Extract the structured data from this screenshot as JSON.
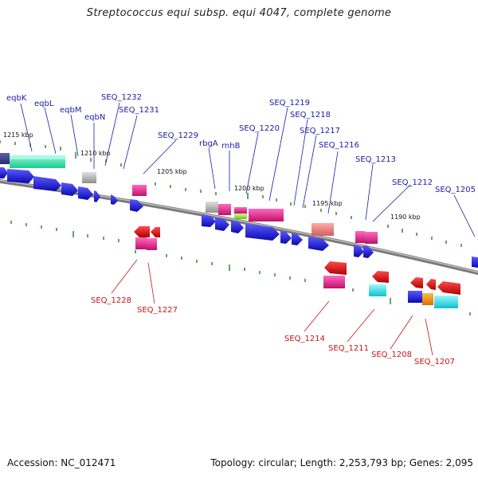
{
  "title": "Streptococcus equi subsp. equi 4047, complete genome",
  "footer": {
    "accession": "Accession: NC_012471",
    "summary": "Topology: circular; Length: 2,253,793 bp; Genes: 2,095"
  },
  "kbp_labels": [
    "1215 kbp",
    "1210 kbp",
    "1205 kbp",
    "1200 kbp",
    "1195 kbp",
    "1190 kbp"
  ],
  "top_labels": [
    "eqbK",
    "eqbL",
    "eqbM",
    "eqbN",
    "SEQ_1232",
    "SEQ_1231",
    "SEQ_1229",
    "rbgA",
    "rnhB",
    "SEQ_1220",
    "SEQ_1219",
    "SEQ_1218",
    "SEQ_1217",
    "SEQ_1216",
    "SEQ_1213",
    "SEQ_1212",
    "SEQ_1205"
  ],
  "bottom_labels": [
    "SEQ_1228",
    "SEQ_1227",
    "SEQ_1214",
    "SEQ_1211",
    "SEQ_1208",
    "SEQ_1207"
  ],
  "colors": {
    "forward_gene": "#1a1ad6",
    "reverse_gene": "#e01010",
    "magenta": "#e0208a",
    "teal": "#30e0b0",
    "cyan": "#20d8e0",
    "orange": "#f08a10",
    "salmon": "#e87878",
    "gray": "#b0b0b0",
    "lime": "#a0e040",
    "tick": "#2a8a2a",
    "backbone": "#888888"
  }
}
